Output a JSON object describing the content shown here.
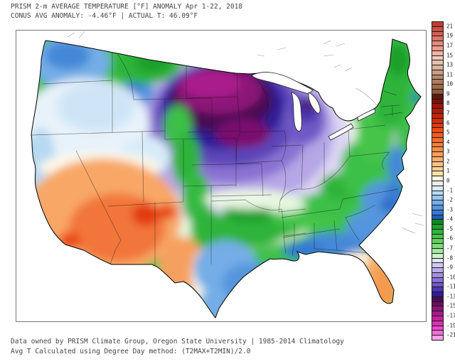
{
  "header": {
    "line1": "PRISM 2-m AVERAGE TEMPERATURE [°F] ANOMALY Apr 1-22, 2018",
    "line2": "CONUS AVG ANOMALY: -4.46°F | ACTUAL T: 46.09°F"
  },
  "footer": {
    "line1": "Data owned by PRISM Climate Group, Oregon State University | 1985-2014 Climatology",
    "line2": "Avg T Calculated using Degree Day method: (T2MAX+T2MIN)/2.0"
  },
  "colorbar": {
    "unit": "°F",
    "labels": [
      "21",
      "19",
      "17",
      "15",
      "13",
      "11",
      "10",
      "9",
      "8",
      "7",
      "6",
      "5",
      "4",
      "3",
      "2",
      "1",
      "0",
      "-1",
      "-2",
      "-3",
      "-4",
      "-5",
      "-6",
      "-7",
      "-8",
      "-9",
      "-10",
      "-11",
      "-13",
      "-15",
      "-17",
      "-19",
      "-21"
    ],
    "box_colors": [
      "#c23c34",
      "#cc4e46",
      "#d66058",
      "#de746a",
      "#e6887c",
      "#ec9c8e",
      "#f2b2a2",
      "#eeccbc",
      "#e4c2ae",
      "#d8b29a",
      "#c89e84",
      "#b88a6e",
      "#ac7c5e",
      "#9e6c4c",
      "#8e5a3c",
      "#5e1a10",
      "#7e120a",
      "#9c150a",
      "#b01b08",
      "#c42408",
      "#d42d08",
      "#e23a0a",
      "#ec4c12",
      "#f25c1c",
      "#f56b28",
      "#f67d36",
      "#f88d46",
      "#f99e58",
      "#fbae6c",
      "#fcbe80",
      "#fdcf96",
      "#f4e4a4",
      "#faf6de",
      "#ececec",
      "#d8edf5",
      "#b8d9f2",
      "#97c5ee",
      "#74ade7",
      "#5595dd",
      "#3479d2",
      "#1f5cc4",
      "#0e8c1e",
      "#1ea02c",
      "#2eb43a",
      "#44c44a",
      "#60d05e",
      "#80dc7a",
      "#a4ea9e",
      "#ccf4c6",
      "#e6e4f7",
      "#d2c9f0",
      "#bcade9",
      "#a48fdf",
      "#8a72d2",
      "#7058c6",
      "#4c36ae",
      "#2f1e96",
      "#4a0e52",
      "#670f62",
      "#8c1478",
      "#a81a8a",
      "#c2229e",
      "#da30b4",
      "#ea48c8",
      "#f46ad6",
      "#f9a2e6"
    ]
  },
  "map_regions": [
    {
      "name": "pacific-northwest",
      "anomaly_f": "-2 to -4",
      "color": "#74ade7"
    },
    {
      "name": "interior-northwest-great-basin-north",
      "anomaly_f": "0 to -1",
      "color": "#e8f2fa"
    },
    {
      "name": "northern-plains-upper-midwest-core",
      "anomaly_f": "-15 to -21",
      "color": "#8c1478"
    },
    {
      "name": "plains-midwest-ring",
      "anomaly_f": "-8 to -13",
      "color": "#7058c6"
    },
    {
      "name": "southwest-desert",
      "anomaly_f": "+2 to +8",
      "color": "#f2763a"
    },
    {
      "name": "rockies-front-range-green-band",
      "anomaly_f": "-4 to -6",
      "color": "#2eb43a"
    },
    {
      "name": "oklahoma-ozarks-tennessee-valley",
      "anomaly_f": "-4 to -6",
      "color": "#2eb43a"
    },
    {
      "name": "gulf-coast-southeast",
      "anomaly_f": "-2 to -4",
      "color": "#5595dd"
    },
    {
      "name": "appalachians-new-england",
      "anomaly_f": "-4 to -7",
      "color": "#2eb43a"
    },
    {
      "name": "central-new-york-pocket",
      "anomaly_f": "-8 to -10",
      "color": "#b5a6e6"
    },
    {
      "name": "florida-peninsula",
      "anomaly_f": "+2 to +4",
      "color": "#f6aa62"
    }
  ]
}
